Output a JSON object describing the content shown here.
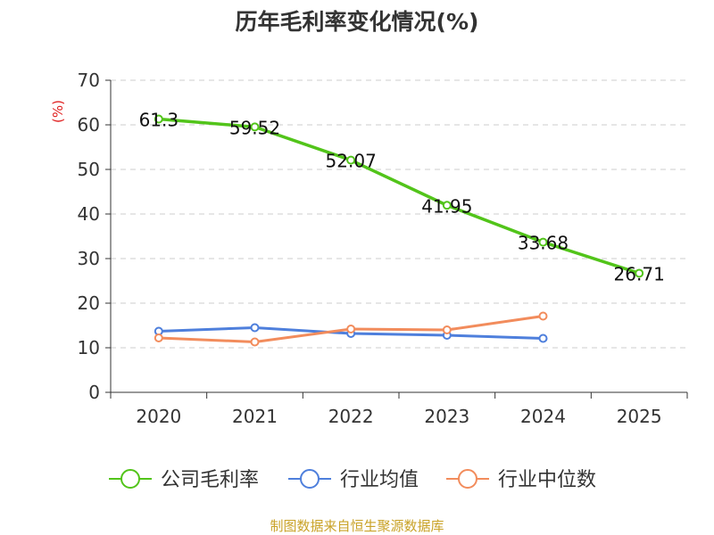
{
  "chart_data": {
    "type": "line",
    "title": "历年毛利率变化情况(%)",
    "ylabel": "(%)",
    "xlabel": "",
    "categories": [
      "2020",
      "2021",
      "2022",
      "2023",
      "2024",
      "2025"
    ],
    "ylim": [
      0,
      70
    ],
    "yticks": [
      0,
      10,
      20,
      30,
      40,
      50,
      60,
      70
    ],
    "grid": true,
    "legend_position": "bottom",
    "series": [
      {
        "name": "公司毛利率",
        "color": "#52c41a",
        "values": [
          61.3,
          59.52,
          52.07,
          41.95,
          33.68,
          26.71
        ],
        "labels": [
          "61.3",
          "59.52",
          "52.07",
          "41.95",
          "33.68",
          "26.71"
        ]
      },
      {
        "name": "行业均值",
        "color": "#4e7fdc",
        "values": [
          13.7,
          14.5,
          13.2,
          12.8,
          12.1,
          null
        ]
      },
      {
        "name": "行业中位数",
        "color": "#f28c5c",
        "values": [
          12.2,
          11.3,
          14.2,
          14.0,
          17.1,
          null
        ]
      }
    ]
  },
  "footer": {
    "source": "制图数据来自恒生聚源数据库",
    "color": "#c9a227"
  }
}
